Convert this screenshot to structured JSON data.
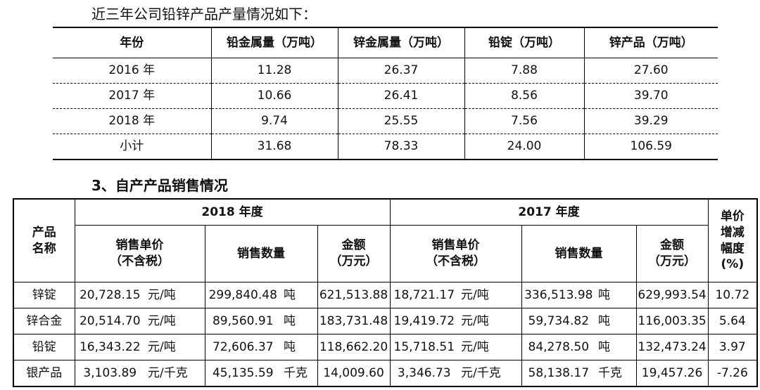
{
  "intro": "近三年公司铅锌产品产量情况如下：",
  "table1": {
    "header": [
      "年份",
      "铅金属量（万吨）",
      "锌金属量（万吨）",
      "铅锭（万吨）",
      "锌产品（万吨）"
    ],
    "rows": [
      [
        "2016 年",
        "11.28",
        "26.37",
        "7.88",
        "27.60"
      ],
      [
        "2017 年",
        "10.66",
        "26.41",
        "8.56",
        "39.70"
      ],
      [
        "2018 年",
        "9.74",
        "25.55",
        "7.56",
        "39.29"
      ],
      [
        "小计",
        "31.68",
        "78.33",
        "24.00",
        "106.59"
      ]
    ]
  },
  "heading": "3、自产产品销售情况",
  "table2": {
    "row_header": "产品\n名称",
    "year_headers": [
      "2018 年度",
      "2017 年度"
    ],
    "change_header": "单价\n增减\n幅度\n(%)",
    "sub_headers": [
      "销售单价\n（不含税）",
      "销售数量",
      "金额\n（万元）"
    ],
    "rows": [
      [
        "锌锭",
        "20,728.15",
        "元/吨",
        "299,840.48",
        "吨",
        "621,513.88",
        "18,721.17",
        "元/吨",
        "336,513.98",
        "吨",
        "629,993.54",
        "10.72"
      ],
      [
        "锌合金",
        "20,514.70",
        "元/吨",
        "89,560.91",
        "吨",
        "183,731.48",
        "19,419.72",
        "元/吨",
        "59,734.82",
        "吨",
        "116,003.35",
        "5.64"
      ],
      [
        "铅锭",
        "16,343.22",
        "元/吨",
        "72,606.37",
        "吨",
        "118,662.20",
        "15,718.51",
        "元/吨",
        "84,278.50",
        "吨",
        "132,473.24",
        "3.97"
      ],
      [
        "银产品",
        "3,103.89",
        "元/千克",
        "45,135.59",
        "千克",
        "14,009.60",
        "3,346.73",
        "元/千克",
        "58,138.17",
        "千克",
        "19,457.26",
        "-7.26"
      ]
    ]
  }
}
